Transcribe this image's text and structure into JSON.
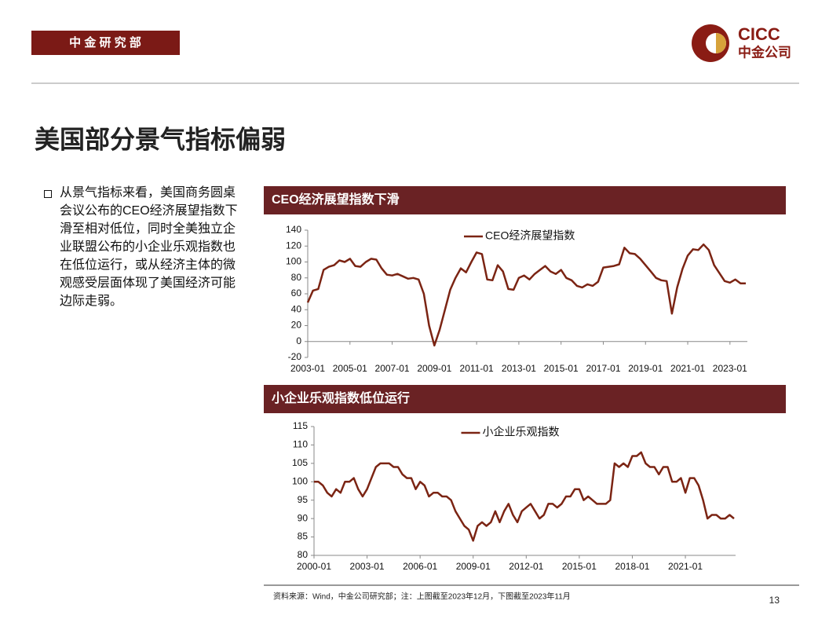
{
  "header": {
    "department": "中 金 研 究 部",
    "logo_en": "CICC",
    "logo_cn": "中金公司"
  },
  "title": "美国部分景气指标偏弱",
  "bullet": "从景气指标来看，美国商务圆桌会议公布的CEO经济展望指数下滑至相对低位，同时全美独立企业联盟公布的小企业乐观指数也在低位运行，或从经济主体的微观感受层面体现了美国经济可能边际走弱。",
  "chart_data": [
    {
      "type": "line",
      "title": "CEO经济展望指数下滑",
      "x": [
        "2003-01",
        "2003-04",
        "2003-07",
        "2003-10",
        "2004-01",
        "2004-04",
        "2004-07",
        "2004-10",
        "2005-01",
        "2005-04",
        "2005-07",
        "2005-10",
        "2006-01",
        "2006-04",
        "2006-07",
        "2006-10",
        "2007-01",
        "2007-04",
        "2007-07",
        "2007-10",
        "2008-01",
        "2008-04",
        "2008-07",
        "2008-10",
        "2009-01",
        "2009-04",
        "2009-07",
        "2009-10",
        "2010-01",
        "2010-04",
        "2010-07",
        "2010-10",
        "2011-01",
        "2011-04",
        "2011-07",
        "2011-10",
        "2012-01",
        "2012-04",
        "2012-07",
        "2012-10",
        "2013-01",
        "2013-04",
        "2013-07",
        "2013-10",
        "2014-01",
        "2014-04",
        "2014-07",
        "2014-10",
        "2015-01",
        "2015-04",
        "2015-07",
        "2015-10",
        "2016-01",
        "2016-04",
        "2016-07",
        "2016-10",
        "2017-01",
        "2017-04",
        "2017-07",
        "2017-10",
        "2018-01",
        "2018-04",
        "2018-07",
        "2018-10",
        "2019-01",
        "2019-04",
        "2019-07",
        "2019-10",
        "2020-01",
        "2020-04",
        "2020-07",
        "2020-10",
        "2021-01",
        "2021-04",
        "2021-07",
        "2021-10",
        "2022-01",
        "2022-04",
        "2022-07",
        "2022-10",
        "2023-01",
        "2023-04",
        "2023-07",
        "2023-10"
      ],
      "series": [
        {
          "name": "CEO经济展望指数",
          "color": "#7b2413",
          "values": [
            49,
            64,
            66,
            90,
            94,
            96,
            102,
            100,
            104,
            95,
            94,
            100,
            104,
            103,
            92,
            84,
            83,
            85,
            82,
            79,
            80,
            78,
            60,
            20,
            -5,
            15,
            40,
            65,
            80,
            92,
            87,
            100,
            112,
            110,
            78,
            77,
            96,
            88,
            66,
            65,
            80,
            83,
            78,
            85,
            90,
            95,
            88,
            85,
            90,
            80,
            77,
            70,
            68,
            72,
            70,
            75,
            93,
            94,
            95,
            97,
            118,
            111,
            110,
            104,
            96,
            88,
            80,
            77,
            76,
            35,
            68,
            91,
            108,
            116,
            115,
            122,
            115,
            96,
            86,
            76,
            74,
            78,
            73,
            73
          ]
        }
      ],
      "ylim": [
        -20,
        140
      ],
      "yticks": [
        -20,
        0,
        20,
        40,
        60,
        80,
        100,
        120,
        140
      ],
      "xticks": [
        "2003-01",
        "2005-01",
        "2007-01",
        "2009-01",
        "2011-01",
        "2013-01",
        "2015-01",
        "2017-01",
        "2019-01",
        "2021-01",
        "2023-01"
      ]
    },
    {
      "type": "line",
      "title": "小企业乐观指数低位运行",
      "x": [
        "2000-01",
        "2000-04",
        "2000-07",
        "2000-10",
        "2001-01",
        "2001-04",
        "2001-07",
        "2001-10",
        "2002-01",
        "2002-04",
        "2002-07",
        "2002-10",
        "2003-01",
        "2003-04",
        "2003-07",
        "2003-10",
        "2004-01",
        "2004-04",
        "2004-07",
        "2004-10",
        "2005-01",
        "2005-04",
        "2005-07",
        "2005-10",
        "2006-01",
        "2006-04",
        "2006-07",
        "2006-10",
        "2007-01",
        "2007-04",
        "2007-07",
        "2007-10",
        "2008-01",
        "2008-04",
        "2008-07",
        "2008-10",
        "2009-01",
        "2009-04",
        "2009-07",
        "2009-10",
        "2010-01",
        "2010-04",
        "2010-07",
        "2010-10",
        "2011-01",
        "2011-04",
        "2011-07",
        "2011-10",
        "2012-01",
        "2012-04",
        "2012-07",
        "2012-10",
        "2013-01",
        "2013-04",
        "2013-07",
        "2013-10",
        "2014-01",
        "2014-04",
        "2014-07",
        "2014-10",
        "2015-01",
        "2015-04",
        "2015-07",
        "2015-10",
        "2016-01",
        "2016-04",
        "2016-07",
        "2016-10",
        "2017-01",
        "2017-04",
        "2017-07",
        "2017-10",
        "2018-01",
        "2018-04",
        "2018-07",
        "2018-10",
        "2019-01",
        "2019-04",
        "2019-07",
        "2019-10",
        "2020-01",
        "2020-04",
        "2020-07",
        "2020-10",
        "2021-01",
        "2021-04",
        "2021-07",
        "2021-10",
        "2022-01",
        "2022-04",
        "2022-07",
        "2022-10",
        "2023-01",
        "2023-04",
        "2023-07",
        "2023-10"
      ],
      "series": [
        {
          "name": "小企业乐观指数",
          "color": "#7b2413",
          "values": [
            100,
            100,
            99,
            97,
            96,
            98,
            97,
            100,
            100,
            101,
            98,
            96,
            98,
            101,
            104,
            105,
            105,
            105,
            104,
            104,
            102,
            101,
            101,
            98,
            100,
            99,
            96,
            97,
            97,
            96,
            96,
            95,
            92,
            90,
            88,
            87,
            84,
            88,
            89,
            88,
            89,
            92,
            89,
            92,
            94,
            91,
            89,
            92,
            93,
            94,
            92,
            90,
            91,
            94,
            94,
            93,
            94,
            96,
            96,
            98,
            98,
            95,
            96,
            95,
            94,
            94,
            94,
            95,
            105,
            104,
            105,
            104,
            107,
            107,
            108,
            105,
            104,
            104,
            102,
            104,
            104,
            100,
            100,
            101,
            97,
            101,
            101,
            99,
            95,
            90,
            91,
            91,
            90,
            90,
            91,
            90
          ]
        }
      ],
      "ylim": [
        80,
        115
      ],
      "yticks": [
        80,
        85,
        90,
        95,
        100,
        105,
        110,
        115
      ],
      "xticks": [
        "2000-01",
        "2003-01",
        "2006-01",
        "2009-01",
        "2012-01",
        "2015-01",
        "2018-01",
        "2021-01"
      ]
    }
  ],
  "footer": {
    "source": "资料来源：Wind，中金公司研究部；注：上图截至2023年12月，下图截至2023年11月",
    "page": "13"
  }
}
